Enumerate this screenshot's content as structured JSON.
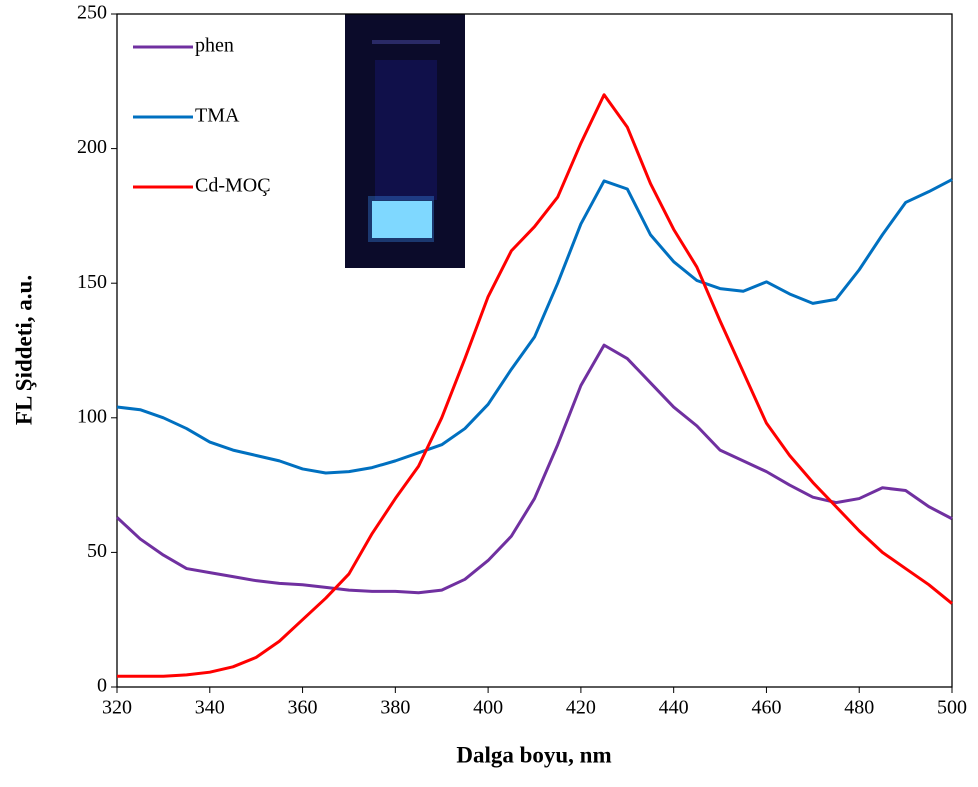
{
  "chart_data": {
    "type": "line",
    "x_label": "Dalga boyu, nm",
    "y_label": "FL Şiddeti, a.u.",
    "x": [
      320,
      325,
      330,
      335,
      340,
      345,
      350,
      355,
      360,
      365,
      370,
      375,
      380,
      385,
      390,
      395,
      400,
      405,
      410,
      415,
      420,
      425,
      430,
      435,
      440,
      445,
      450,
      455,
      460,
      465,
      470,
      475,
      480,
      485,
      490,
      495,
      500
    ],
    "series": [
      {
        "name": "phen",
        "color": "#7030a0",
        "values": [
          63,
          55,
          49,
          44,
          42.5,
          41,
          39.5,
          38.5,
          38,
          37,
          36,
          35.5,
          35.5,
          35,
          36,
          40,
          47,
          56,
          70,
          90,
          112,
          127,
          122,
          113,
          104,
          97,
          88,
          84,
          80,
          75,
          70.5,
          68.5,
          70,
          74,
          73,
          67,
          62.5
        ]
      },
      {
        "name": "TMA",
        "color": "#0070c0",
        "values": [
          104,
          103,
          100,
          96,
          91,
          88,
          86,
          84,
          81,
          79.5,
          80,
          81.5,
          84,
          87,
          90,
          96,
          105,
          118,
          130,
          150,
          172,
          188,
          185,
          168,
          158,
          151,
          148,
          147,
          150.5,
          146,
          142.5,
          144,
          155,
          168,
          180,
          184,
          188.5
        ]
      },
      {
        "name": "Cd-MOÇ",
        "color": "#ff0000",
        "values": [
          4,
          4,
          4,
          4.5,
          5.5,
          7.5,
          11,
          17,
          25,
          33,
          42,
          57,
          70,
          82,
          100,
          122,
          145,
          162,
          171,
          182,
          202,
          220,
          208,
          187,
          170,
          156,
          136,
          117,
          98,
          86,
          76,
          67,
          58,
          50,
          44,
          38,
          31
        ]
      }
    ],
    "xlim": [
      320,
      500
    ],
    "xticks": [
      320,
      340,
      360,
      380,
      400,
      420,
      440,
      460,
      480,
      500
    ],
    "ylim": [
      0,
      250
    ],
    "yticks": [
      0,
      50,
      100,
      150,
      200,
      250
    ],
    "legend": "top-left"
  }
}
